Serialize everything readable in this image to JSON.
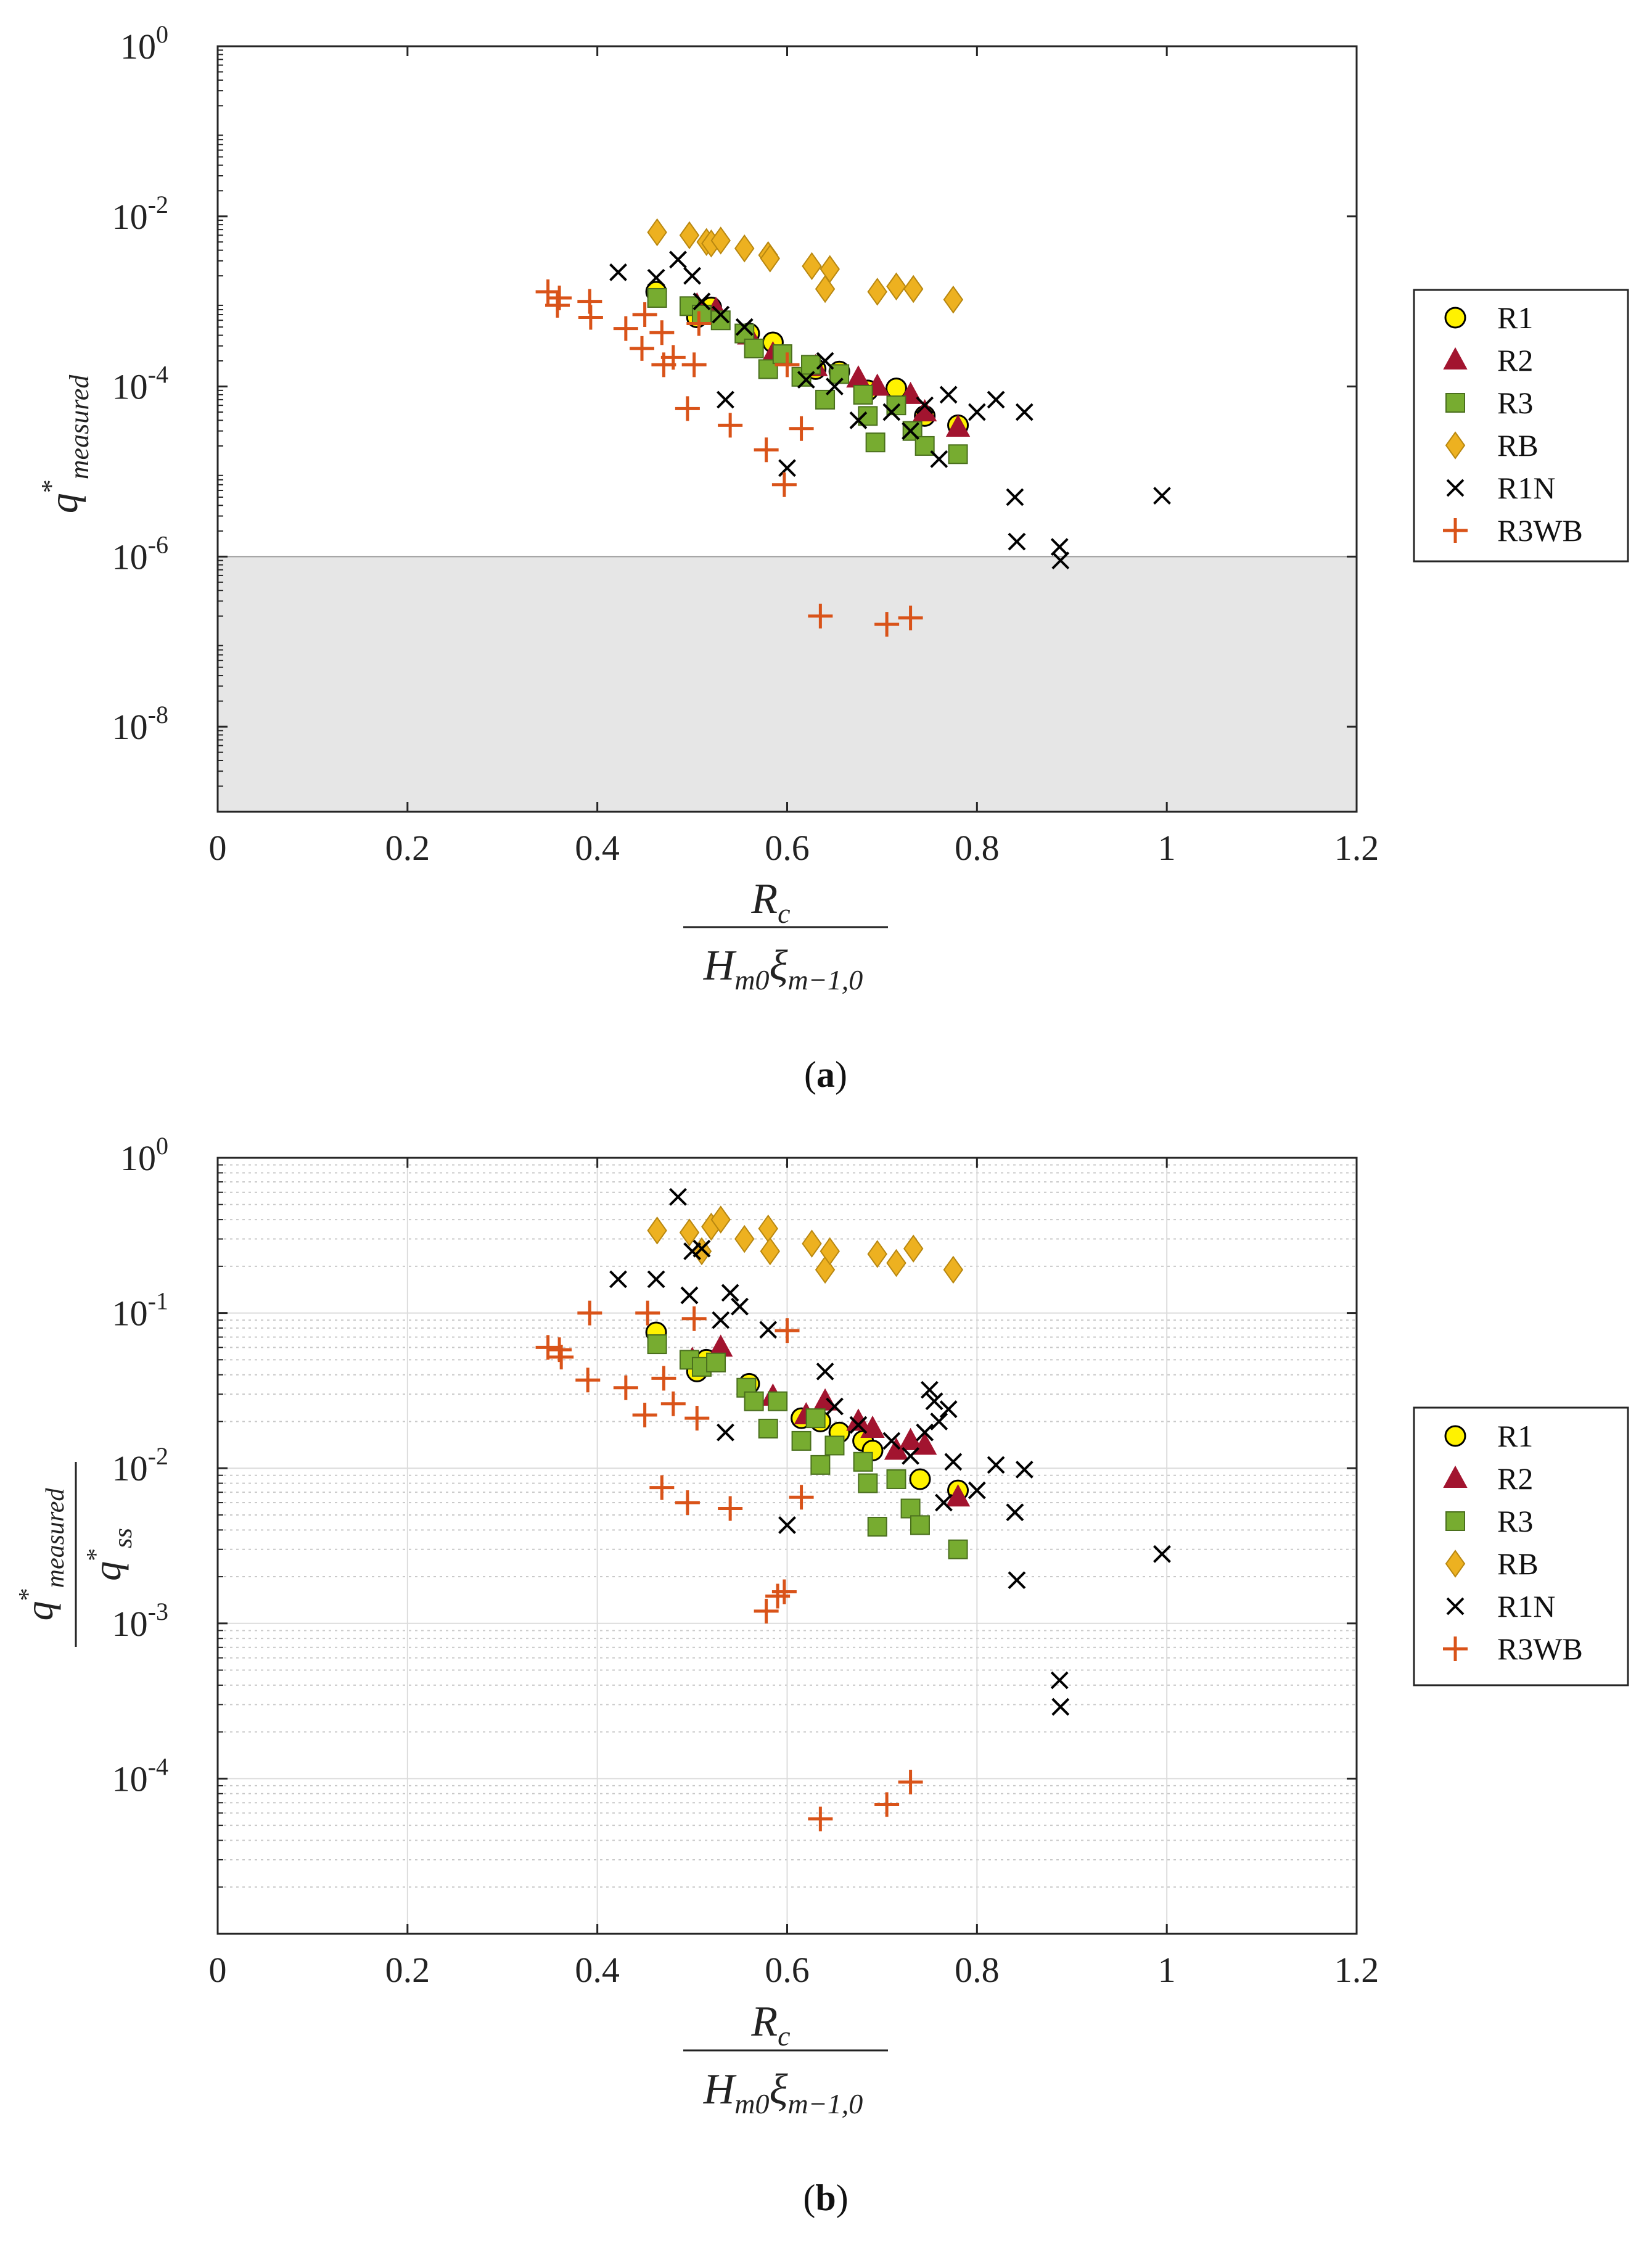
{
  "legend_entries": [
    {
      "name": "R1",
      "marker": "circle",
      "fill": "#FFF200",
      "stroke": "#000000"
    },
    {
      "name": "R2",
      "marker": "triangle",
      "fill": "#A2142F",
      "stroke": "#A2142F"
    },
    {
      "name": "R3",
      "marker": "square",
      "fill": "#77AC30",
      "stroke": "#4a6f1d"
    },
    {
      "name": "RB",
      "marker": "diamond",
      "fill": "#EDB120",
      "stroke": "#b88710"
    },
    {
      "name": "R1N",
      "marker": "x",
      "fill": "none",
      "stroke": "#000000"
    },
    {
      "name": "R3WB",
      "marker": "plus",
      "fill": "none",
      "stroke": "#D95319"
    }
  ],
  "chart_data": [
    {
      "type": "scatter",
      "yscale": "log",
      "caption_letter": "a",
      "caption": "(a)",
      "xlabel_numerator": "R",
      "xlabel_numerator_sub": "c",
      "xlabel_denominator": "H",
      "xlabel_denominator_sub1": "m0",
      "xlabel_denominator_xi": "ξ",
      "xlabel_denominator_sub2": "m−1,0",
      "ylabel_main": "q",
      "ylabel_sup": "*",
      "ylabel_sub": "measured",
      "xlim": [
        0,
        1.2
      ],
      "ylim_exp": [
        -9,
        0
      ],
      "xticks": [
        0,
        0.2,
        0.4,
        0.6,
        0.8,
        1,
        1.2
      ],
      "xtick_labels": [
        "0",
        "0.2",
        "0.4",
        "0.6",
        "0.8",
        "1",
        "1.2"
      ],
      "yticks_exp": [
        0,
        -2,
        -4,
        -6,
        -8
      ],
      "ytick_base": "10",
      "ytick_exponents": [
        "0",
        "-2",
        "-4",
        "-6",
        "-8"
      ],
      "shaded_region_y": [
        1e-09,
        1e-06
      ],
      "grid": false,
      "series": [
        {
          "name": "R1",
          "points": [
            [
              0.462,
              0.0013
            ],
            [
              0.505,
              0.00065
            ],
            [
              0.52,
              0.00085
            ],
            [
              0.56,
              0.00042
            ],
            [
              0.585,
              0.00033
            ],
            [
              0.63,
              0.00016
            ],
            [
              0.655,
              0.00015
            ],
            [
              0.685,
              9e-05
            ],
            [
              0.715,
              9.5e-05
            ],
            [
              0.745,
              4.5e-05
            ],
            [
              0.78,
              3.5e-05
            ]
          ]
        },
        {
          "name": "R2",
          "points": [
            [
              0.505,
              0.0009
            ],
            [
              0.525,
              0.0008
            ],
            [
              0.56,
              0.0004
            ],
            [
              0.585,
              0.00024
            ],
            [
              0.63,
              0.00017
            ],
            [
              0.675,
              0.000125
            ],
            [
              0.695,
              0.0001
            ],
            [
              0.73,
              8e-05
            ],
            [
              0.745,
              5e-05
            ],
            [
              0.78,
              3.3e-05
            ]
          ]
        },
        {
          "name": "R3",
          "points": [
            [
              0.463,
              0.0011
            ],
            [
              0.497,
              0.00088
            ],
            [
              0.51,
              0.0007
            ],
            [
              0.53,
              0.0006
            ],
            [
              0.555,
              0.00042
            ],
            [
              0.565,
              0.00028
            ],
            [
              0.58,
              0.00016
            ],
            [
              0.595,
              0.00024
            ],
            [
              0.615,
              0.00013
            ],
            [
              0.625,
              0.00018
            ],
            [
              0.64,
              7e-05
            ],
            [
              0.655,
              0.00014
            ],
            [
              0.68,
              8e-05
            ],
            [
              0.685,
              4.5e-05
            ],
            [
              0.693,
              2.2e-05
            ],
            [
              0.715,
              6e-05
            ],
            [
              0.732,
              3e-05
            ],
            [
              0.745,
              2e-05
            ],
            [
              0.78,
              1.6e-05
            ]
          ]
        },
        {
          "name": "RB",
          "points": [
            [
              0.463,
              0.0065
            ],
            [
              0.497,
              0.006
            ],
            [
              0.515,
              0.005
            ],
            [
              0.52,
              0.0048
            ],
            [
              0.53,
              0.0052
            ],
            [
              0.555,
              0.0042
            ],
            [
              0.58,
              0.0035
            ],
            [
              0.582,
              0.0032
            ],
            [
              0.626,
              0.0026
            ],
            [
              0.64,
              0.0014
            ],
            [
              0.645,
              0.0024
            ],
            [
              0.695,
              0.0013
            ],
            [
              0.715,
              0.0015
            ],
            [
              0.733,
              0.0014
            ],
            [
              0.775,
              0.00105
            ]
          ]
        },
        {
          "name": "R1N",
          "points": [
            [
              0.422,
              0.0022
            ],
            [
              0.462,
              0.0019
            ],
            [
              0.485,
              0.0031
            ],
            [
              0.5,
              0.002
            ],
            [
              0.51,
              0.001
            ],
            [
              0.535,
              7e-05
            ],
            [
              0.53,
              0.0007
            ],
            [
              0.555,
              0.0005
            ],
            [
              0.6,
              1.1e-05
            ],
            [
              0.62,
              0.00012
            ],
            [
              0.64,
              0.0002
            ],
            [
              0.65,
              0.0001
            ],
            [
              0.675,
              4e-05
            ],
            [
              0.71,
              5e-05
            ],
            [
              0.73,
              3e-05
            ],
            [
              0.745,
              6e-05
            ],
            [
              0.76,
              1.4e-05
            ],
            [
              0.77,
              8e-05
            ],
            [
              0.8,
              5e-05
            ],
            [
              0.82,
              7e-05
            ],
            [
              0.84,
              5e-06
            ],
            [
              0.85,
              5e-05
            ],
            [
              0.842,
              1.5e-06
            ],
            [
              0.887,
              1.3e-06
            ],
            [
              0.888,
              9e-07
            ],
            [
              0.995,
              5.2e-06
            ]
          ]
        },
        {
          "name": "R3WB",
          "points": [
            [
              0.348,
              0.0013
            ],
            [
              0.36,
              0.0011
            ],
            [
              0.358,
              0.0009
            ],
            [
              0.392,
              0.001
            ],
            [
              0.393,
              0.00065
            ],
            [
              0.43,
              0.00048
            ],
            [
              0.45,
              0.0007
            ],
            [
              0.447,
              0.00028
            ],
            [
              0.468,
              0.00043
            ],
            [
              0.47,
              0.00018
            ],
            [
              0.48,
              0.00022
            ],
            [
              0.495,
              5.5e-05
            ],
            [
              0.502,
              0.00018
            ],
            [
              0.507,
              0.00055
            ],
            [
              0.54,
              3.5e-05
            ],
            [
              0.578,
              1.8e-05
            ],
            [
              0.597,
              7e-06
            ],
            [
              0.6,
              0.00018
            ],
            [
              0.615,
              3.2e-05
            ],
            [
              0.635,
              2e-07
            ],
            [
              0.705,
              1.6e-07
            ],
            [
              0.73,
              1.9e-07
            ]
          ]
        }
      ]
    },
    {
      "type": "scatter",
      "yscale": "log",
      "caption_letter": "b",
      "caption": "(b)",
      "xlabel_numerator": "R",
      "xlabel_numerator_sub": "c",
      "xlabel_denominator": "H",
      "xlabel_denominator_sub1": "m0",
      "xlabel_denominator_xi": "ξ",
      "xlabel_denominator_sub2": "m−1,0",
      "ylabel_main": "q",
      "ylabel_sup": "*",
      "ylabel_sub": "measured",
      "ylabel_den_main": "q",
      "ylabel_den_sup": "*",
      "ylabel_den_sub": "ss",
      "xlim": [
        0,
        1.2
      ],
      "ylim_exp": [
        -5,
        0
      ],
      "xticks": [
        0,
        0.2,
        0.4,
        0.6,
        0.8,
        1,
        1.2
      ],
      "xtick_labels": [
        "0",
        "0.2",
        "0.4",
        "0.6",
        "0.8",
        "1",
        "1.2"
      ],
      "yticks_exp": [
        0,
        -1,
        -2,
        -3,
        -4
      ],
      "ytick_base": "10",
      "ytick_exponents": [
        "0",
        "-1",
        "-2",
        "-3",
        "-4"
      ],
      "grid": true,
      "series": [
        {
          "name": "R1",
          "points": [
            [
              0.462,
              0.075
            ],
            [
              0.505,
              0.042
            ],
            [
              0.515,
              0.05
            ],
            [
              0.56,
              0.035
            ],
            [
              0.615,
              0.021
            ],
            [
              0.635,
              0.02
            ],
            [
              0.655,
              0.017
            ],
            [
              0.68,
              0.015
            ],
            [
              0.69,
              0.013
            ],
            [
              0.74,
              0.0085
            ],
            [
              0.78,
              0.0072
            ]
          ]
        },
        {
          "name": "R2",
          "points": [
            [
              0.5,
              0.05
            ],
            [
              0.53,
              0.06
            ],
            [
              0.585,
              0.029
            ],
            [
              0.62,
              0.022
            ],
            [
              0.64,
              0.027
            ],
            [
              0.675,
              0.02
            ],
            [
              0.69,
              0.018
            ],
            [
              0.715,
              0.013
            ],
            [
              0.73,
              0.015
            ],
            [
              0.745,
              0.014
            ],
            [
              0.78,
              0.0065
            ]
          ]
        },
        {
          "name": "R3",
          "points": [
            [
              0.463,
              0.063
            ],
            [
              0.497,
              0.05
            ],
            [
              0.51,
              0.045
            ],
            [
              0.525,
              0.048
            ],
            [
              0.557,
              0.033
            ],
            [
              0.565,
              0.027
            ],
            [
              0.58,
              0.018
            ],
            [
              0.59,
              0.027
            ],
            [
              0.615,
              0.015
            ],
            [
              0.63,
              0.021
            ],
            [
              0.635,
              0.0105
            ],
            [
              0.65,
              0.014
            ],
            [
              0.68,
              0.011
            ],
            [
              0.685,
              0.008
            ],
            [
              0.695,
              0.0042
            ],
            [
              0.715,
              0.0085
            ],
            [
              0.73,
              0.0055
            ],
            [
              0.74,
              0.0043
            ],
            [
              0.78,
              0.003
            ]
          ]
        },
        {
          "name": "RB",
          "points": [
            [
              0.463,
              0.34
            ],
            [
              0.497,
              0.33
            ],
            [
              0.51,
              0.25
            ],
            [
              0.52,
              0.36
            ],
            [
              0.53,
              0.4
            ],
            [
              0.555,
              0.3
            ],
            [
              0.58,
              0.35
            ],
            [
              0.582,
              0.25
            ],
            [
              0.626,
              0.28
            ],
            [
              0.64,
              0.19
            ],
            [
              0.645,
              0.25
            ],
            [
              0.695,
              0.24
            ],
            [
              0.715,
              0.21
            ],
            [
              0.733,
              0.26
            ],
            [
              0.775,
              0.19
            ]
          ]
        },
        {
          "name": "R1N",
          "points": [
            [
              0.422,
              0.165
            ],
            [
              0.462,
              0.165
            ],
            [
              0.485,
              0.56
            ],
            [
              0.5,
              0.25
            ],
            [
              0.497,
              0.13
            ],
            [
              0.51,
              0.26
            ],
            [
              0.535,
              0.017
            ],
            [
              0.53,
              0.09
            ],
            [
              0.54,
              0.135
            ],
            [
              0.55,
              0.11
            ],
            [
              0.58,
              0.078
            ],
            [
              0.6,
              0.0043
            ],
            [
              0.64,
              0.042
            ],
            [
              0.65,
              0.025
            ],
            [
              0.675,
              0.019
            ],
            [
              0.71,
              0.015
            ],
            [
              0.73,
              0.012
            ],
            [
              0.745,
              0.017
            ],
            [
              0.75,
              0.032
            ],
            [
              0.755,
              0.027
            ],
            [
              0.76,
              0.02
            ],
            [
              0.765,
              0.006
            ],
            [
              0.77,
              0.024
            ],
            [
              0.775,
              0.011
            ],
            [
              0.8,
              0.0072
            ],
            [
              0.82,
              0.0105
            ],
            [
              0.84,
              0.0052
            ],
            [
              0.85,
              0.0098
            ],
            [
              0.842,
              0.0019
            ],
            [
              0.887,
              0.00043
            ],
            [
              0.888,
              0.00029
            ],
            [
              0.995,
              0.0028
            ]
          ]
        },
        {
          "name": "R3WB",
          "points": [
            [
              0.348,
              0.06
            ],
            [
              0.36,
              0.058
            ],
            [
              0.362,
              0.052
            ],
            [
              0.39,
              0.037
            ],
            [
              0.392,
              0.1
            ],
            [
              0.43,
              0.033
            ],
            [
              0.45,
              0.022
            ],
            [
              0.453,
              0.1
            ],
            [
              0.47,
              0.038
            ],
            [
              0.468,
              0.0075
            ],
            [
              0.48,
              0.026
            ],
            [
              0.495,
              0.006
            ],
            [
              0.502,
              0.092
            ],
            [
              0.505,
              0.021
            ],
            [
              0.54,
              0.0055
            ],
            [
              0.578,
              0.0012
            ],
            [
              0.59,
              0.0015
            ],
            [
              0.597,
              0.0016
            ],
            [
              0.6,
              0.077
            ],
            [
              0.615,
              0.0065
            ],
            [
              0.635,
              5.5e-05
            ],
            [
              0.705,
              6.8e-05
            ],
            [
              0.73,
              9.5e-05
            ]
          ]
        }
      ]
    }
  ]
}
